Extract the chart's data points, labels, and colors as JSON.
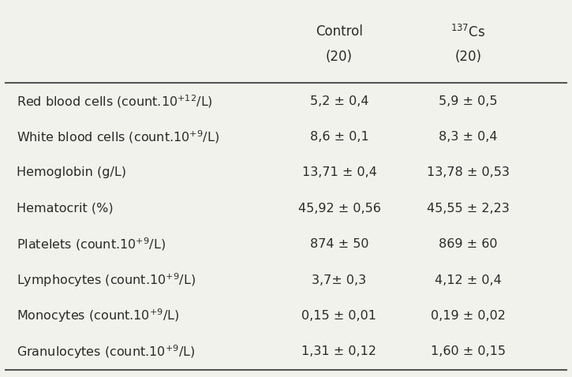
{
  "col_headers": [
    [
      "Control",
      "(20)"
    ],
    [
      "$^{137}$Cs",
      "(20)"
    ]
  ],
  "rows": [
    {
      "label": "Red blood cells (count.10$^{+12}$/L)",
      "control": "5,2 ± 0,4",
      "cs": "5,9 ± 0,5"
    },
    {
      "label": "White blood cells (count.10$^{+9}$/L)",
      "control": "8,6 ± 0,1",
      "cs": "8,3 ± 0,4"
    },
    {
      "label": "Hemoglobin (g/L)",
      "control": "13,71 ± 0,4",
      "cs": "13,78 ± 0,53"
    },
    {
      "label": "Hematocrit (%)",
      "control": "45,92 ± 0,56",
      "cs": "45,55 ± 2,23"
    },
    {
      "label": "Platelets (count.10$^{+9}$/L)",
      "control": "874 ± 50",
      "cs": "869 ± 60"
    },
    {
      "label": "Lymphocytes (count.10$^{+9}$/L)",
      "control": "3,7± 0,3",
      "cs": "4,12 ± 0,4"
    },
    {
      "label": "Monocytes (count.10$^{+9}$/L)",
      "control": "0,15 ± 0,01",
      "cs": "0,19 ± 0,02"
    },
    {
      "label": "Granulocytes (count.10$^{+9}$/L)",
      "control": "1,31 ± 0,12",
      "cs": "1,60 ± 0,15"
    }
  ],
  "background_color": "#f2f2ed",
  "text_color": "#2a2a2a",
  "line_color": "#555555",
  "font_size": 11.5,
  "header_font_size": 12
}
